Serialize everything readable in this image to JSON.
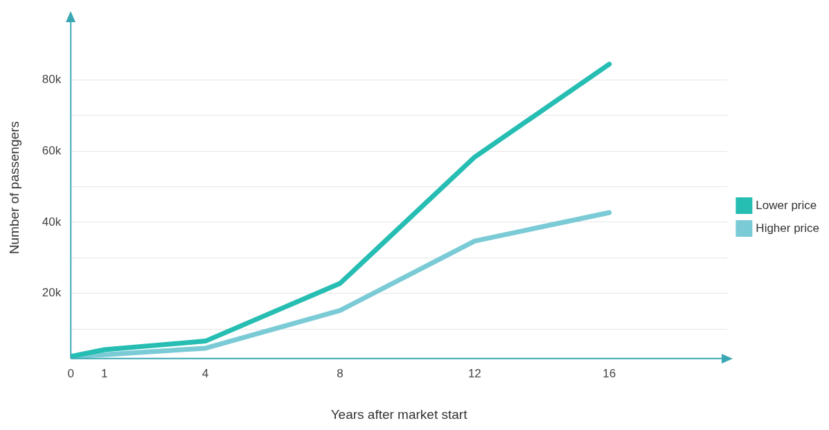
{
  "chart_data": {
    "type": "line",
    "xlabel": "Years after market start",
    "ylabel": "Number of passengers",
    "x": [
      0,
      1,
      4,
      8,
      12,
      16
    ],
    "series": [
      {
        "name": "Lower price",
        "color": "#26bdb3",
        "values": [
          2300,
          4200,
          6600,
          22800,
          58300,
          84400
        ]
      },
      {
        "name": "Higher price",
        "color": "#7acbd6",
        "values": [
          2300,
          2800,
          4600,
          15200,
          34700,
          42700
        ]
      }
    ],
    "xlim": [
      0,
      19.5
    ],
    "xticks": [
      0,
      1,
      4,
      8,
      12,
      16
    ],
    "ylim": [
      1700,
      97700
    ],
    "yticks": [
      {
        "value": 10000,
        "label": null
      },
      {
        "value": 20000,
        "label": "20k"
      },
      {
        "value": 30000,
        "label": null
      },
      {
        "value": 40000,
        "label": "40k"
      },
      {
        "value": 50000,
        "label": null
      },
      {
        "value": 60000,
        "label": "60k"
      },
      {
        "value": 70000,
        "label": null
      },
      {
        "value": 80000,
        "label": "80k"
      }
    ],
    "grid": "y",
    "legend": "right",
    "marker": "none",
    "line_style": "solid"
  }
}
